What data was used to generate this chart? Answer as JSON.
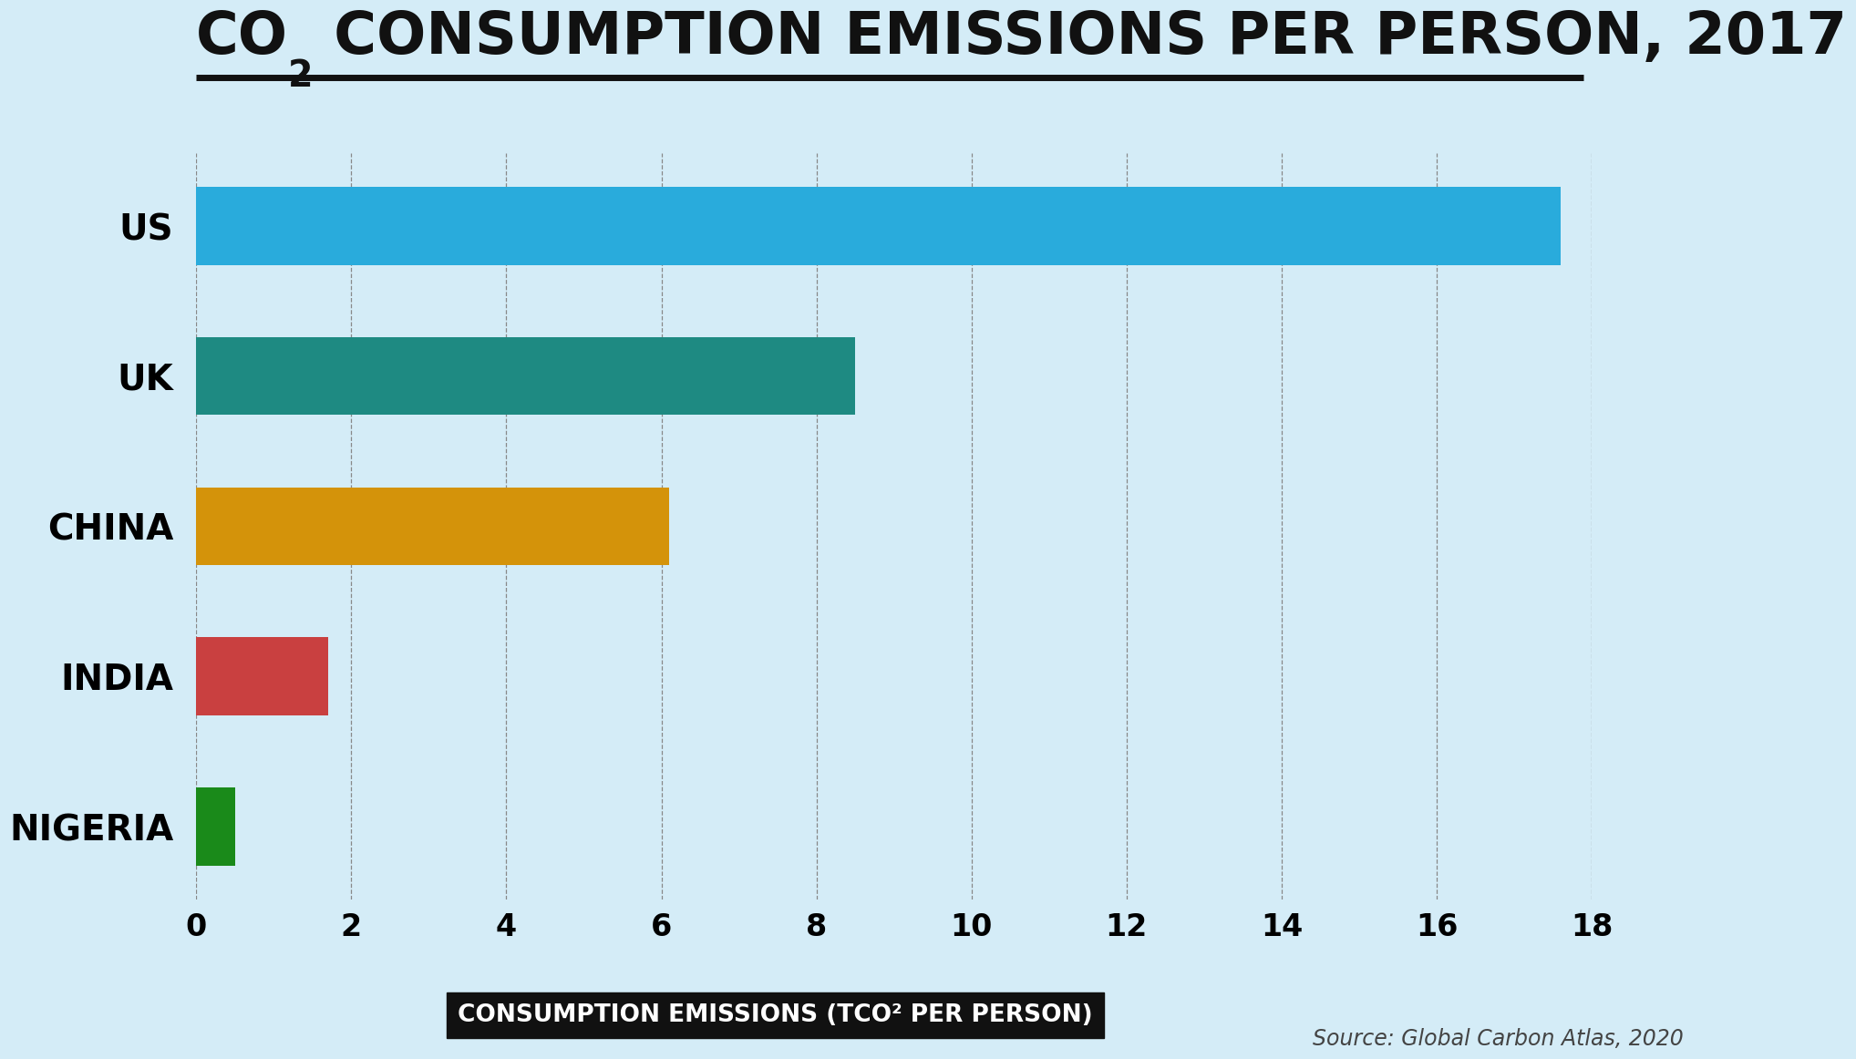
{
  "background_color": "#d4ecf7",
  "categories": [
    "US",
    "UK",
    "CHINA",
    "INDIA",
    "NIGERIA"
  ],
  "values": [
    17.6,
    8.5,
    6.1,
    1.7,
    0.5
  ],
  "bar_colors": [
    "#29abdc",
    "#1e8a82",
    "#d4930a",
    "#c94040",
    "#1a8a1a"
  ],
  "xlim": [
    0,
    18
  ],
  "xticks": [
    0,
    2,
    4,
    6,
    8,
    10,
    12,
    14,
    16,
    18
  ],
  "xlabel": "CONSUMPTION EMISSIONS (TCO² PER PERSON)",
  "source_text": "Source: Global Carbon Atlas, 2020",
  "title_fontsize": 46,
  "ylabel_fontsize": 28,
  "xlabel_fontsize": 19,
  "tick_fontsize": 24,
  "source_fontsize": 17,
  "bar_height": 0.52
}
